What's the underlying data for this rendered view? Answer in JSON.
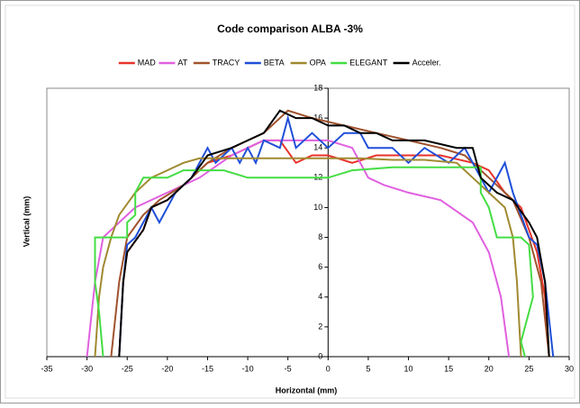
{
  "chart_data": {
    "type": "line",
    "title": "Code comparison ALBA -3%",
    "xlabel": "Horizontal (mm)",
    "ylabel": "Vertical (mm)",
    "xlim": [
      -35,
      30
    ],
    "xticks": [
      -35,
      -30,
      -25,
      -20,
      -15,
      -10,
      -5,
      0,
      5,
      10,
      15,
      20,
      25,
      30
    ],
    "ylim": [
      0,
      18
    ],
    "yticks": [
      0,
      2,
      4,
      6,
      8,
      10,
      12,
      14,
      16,
      18
    ],
    "grid": false,
    "legend": "top",
    "series": [
      {
        "name": "MAD",
        "color": "#e8332a",
        "x": [
          -26,
          -25.5,
          -25,
          -23,
          -22,
          -20,
          -17,
          -15,
          -12,
          -10,
          -8,
          -6,
          -4,
          -2,
          0,
          3,
          6,
          10,
          14,
          18,
          20,
          22,
          24,
          26,
          27,
          27.5
        ],
        "values": [
          0,
          5,
          7,
          8.5,
          10,
          10.5,
          12,
          13,
          13.5,
          14,
          14.5,
          14.5,
          13,
          13.5,
          13.5,
          13,
          13.5,
          13.5,
          13.5,
          13,
          12.5,
          11,
          10,
          7,
          4,
          0
        ]
      },
      {
        "name": "AT",
        "color": "#e060e0",
        "x": [
          -30,
          -29,
          -28,
          -26,
          -24,
          -20,
          -16,
          -12,
          -8,
          -4,
          0,
          3,
          5,
          7,
          10,
          14,
          18,
          20,
          21.5,
          22.5
        ],
        "values": [
          0,
          5,
          8,
          9,
          10,
          11,
          12,
          13.5,
          14.5,
          14.5,
          14.5,
          14,
          12,
          11.5,
          11,
          10.5,
          9,
          7,
          4,
          0
        ]
      },
      {
        "name": "TRACY",
        "color": "#a0522d",
        "x": [
          -27,
          -26,
          -25,
          -23,
          -21,
          -18,
          -15,
          -12,
          -8,
          -5,
          -2,
          2,
          6,
          10,
          14,
          17,
          20,
          23,
          25,
          26.5,
          27.5
        ],
        "values": [
          0,
          5,
          8,
          9.5,
          10.5,
          11.5,
          13,
          14,
          15,
          16.5,
          16,
          15.5,
          15,
          14.5,
          14,
          13.5,
          12,
          10.5,
          8,
          5,
          0
        ]
      },
      {
        "name": "BETA",
        "color": "#1f4fd8",
        "x": [
          -26,
          -25.5,
          -25,
          -24,
          -22,
          -21,
          -19,
          -17,
          -16,
          -15,
          -14,
          -12,
          -11,
          -10,
          -9,
          -8,
          -6,
          -5,
          -4,
          -2,
          0,
          2,
          4,
          5,
          8,
          10,
          12,
          15,
          17,
          18,
          20,
          22,
          23,
          25,
          26,
          27,
          28
        ],
        "values": [
          0,
          5,
          7.5,
          8,
          10,
          9,
          11,
          12,
          13,
          14,
          13,
          14,
          13,
          14,
          13,
          14.5,
          14,
          16,
          14,
          15,
          14,
          15,
          15,
          14,
          14,
          13,
          14,
          13,
          14,
          13,
          11,
          13,
          11,
          8,
          7.5,
          5,
          0
        ]
      },
      {
        "name": "OPA",
        "color": "#a08a30",
        "x": [
          -29,
          -28.5,
          -28,
          -27,
          -26,
          -24,
          -22,
          -20,
          -18,
          -16,
          -12,
          -8,
          -4,
          0,
          4,
          8,
          12,
          16,
          18,
          20,
          22,
          23,
          23.5,
          24
        ],
        "values": [
          0,
          4,
          6,
          8,
          9.5,
          11,
          12,
          12.5,
          13,
          13.3,
          13.3,
          13.3,
          13.3,
          13.3,
          13.3,
          13.2,
          13.2,
          13,
          12,
          11,
          10,
          8,
          5,
          0
        ]
      },
      {
        "name": "ELEGANT",
        "color": "#44dd44",
        "x": [
          -28,
          -28.5,
          -29,
          -29,
          -27,
          -25,
          -25,
          -24,
          -24,
          -23,
          -20,
          -18,
          -15,
          -13,
          -10,
          -5,
          0,
          3,
          8,
          12,
          16,
          19,
          19,
          20,
          21,
          24,
          25,
          25.5,
          24,
          24.5
        ],
        "values": [
          0,
          3,
          5,
          8,
          8,
          8,
          9,
          9.5,
          11,
          12,
          12,
          12.5,
          12.5,
          12.5,
          12,
          12,
          12,
          12.5,
          12.7,
          12.7,
          12.7,
          12.7,
          11,
          10,
          8,
          8,
          7.5,
          4,
          1,
          0
        ]
      },
      {
        "name": "Acceler.",
        "color": "#000000",
        "x": [
          -26,
          -25.5,
          -25,
          -23,
          -22,
          -20,
          -17,
          -15,
          -12,
          -10,
          -8,
          -6,
          -4,
          -2,
          0,
          2,
          4,
          6,
          8,
          12,
          16,
          18,
          19,
          21,
          23,
          25,
          26,
          27,
          27.5
        ],
        "values": [
          0,
          5,
          7,
          8.5,
          10,
          10.5,
          12,
          13.5,
          14,
          14.5,
          15,
          16.5,
          16,
          16,
          15.5,
          15.5,
          15,
          15,
          14.5,
          14.5,
          14,
          14,
          12,
          11,
          10.5,
          9,
          8,
          5,
          0
        ]
      }
    ]
  }
}
